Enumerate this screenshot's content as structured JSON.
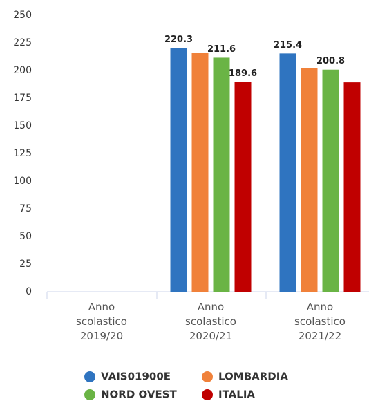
{
  "chart_data": {
    "type": "bar",
    "categories": [
      "Anno scolastico 2019/20",
      "Anno scolastico 2020/21",
      "Anno scolastico 2021/22"
    ],
    "series": [
      {
        "name": "VAIS01900E",
        "color": "#2f74c0",
        "values": [
          null,
          220.3,
          215.4
        ],
        "value_labels": [
          null,
          "220.3",
          "215.4"
        ]
      },
      {
        "name": "LOMBARDIA",
        "color": "#f0813a",
        "values": [
          null,
          215.7,
          202.3
        ],
        "value_labels": [
          null,
          null,
          null
        ]
      },
      {
        "name": "NORD OVEST",
        "color": "#6ab445",
        "values": [
          null,
          211.6,
          200.8
        ],
        "value_labels": [
          null,
          "211.6",
          "200.8"
        ]
      },
      {
        "name": "ITALIA",
        "color": "#c00000",
        "values": [
          null,
          189.6,
          189.3
        ],
        "value_labels": [
          null,
          "189.6",
          null
        ]
      }
    ],
    "ylim": [
      0,
      250
    ],
    "yticks": [
      0,
      25,
      50,
      75,
      100,
      125,
      150,
      175,
      200,
      225,
      250
    ],
    "grid": false
  }
}
